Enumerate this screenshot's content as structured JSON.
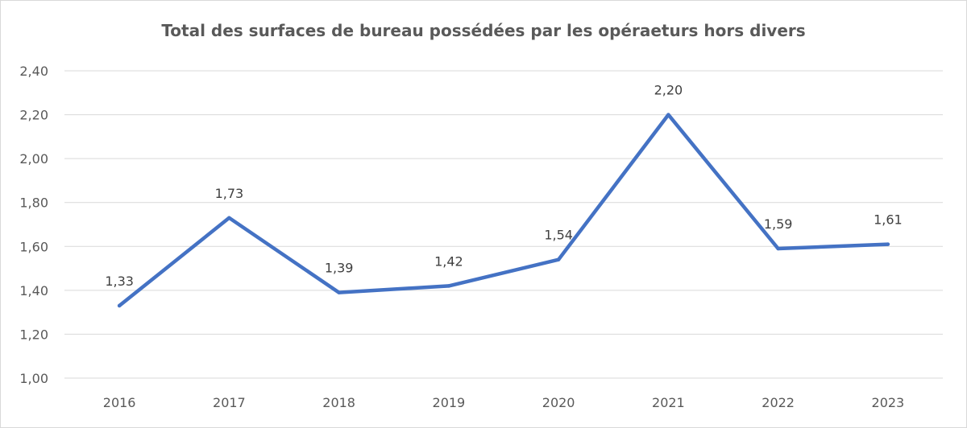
{
  "chart_data": {
    "type": "line",
    "title": "Total des surfaces de bureau possédées par les opéraeturs hors divers",
    "xlabel": "",
    "ylabel": "",
    "categories": [
      "2016",
      "2017",
      "2018",
      "2019",
      "2020",
      "2021",
      "2022",
      "2023"
    ],
    "series": [
      {
        "values": [
          1.33,
          1.73,
          1.39,
          1.42,
          1.54,
          2.2,
          1.59,
          1.61
        ],
        "labels": [
          "1,33",
          "1,73",
          "1,39",
          "1,42",
          "1,54",
          "2,20",
          "1,59",
          "1,61"
        ],
        "color": "#4472c4"
      }
    ],
    "ylim": [
      1.0,
      2.4
    ],
    "yticks": [
      1.0,
      1.2,
      1.4,
      1.6,
      1.8,
      2.0,
      2.2,
      2.4
    ],
    "ytick_labels": [
      "1,00",
      "1,20",
      "1,40",
      "1,60",
      "1,80",
      "2,00",
      "2,20",
      "2,40"
    ],
    "grid": true,
    "gridline_color": "#d9d9d9",
    "legend": "none"
  }
}
